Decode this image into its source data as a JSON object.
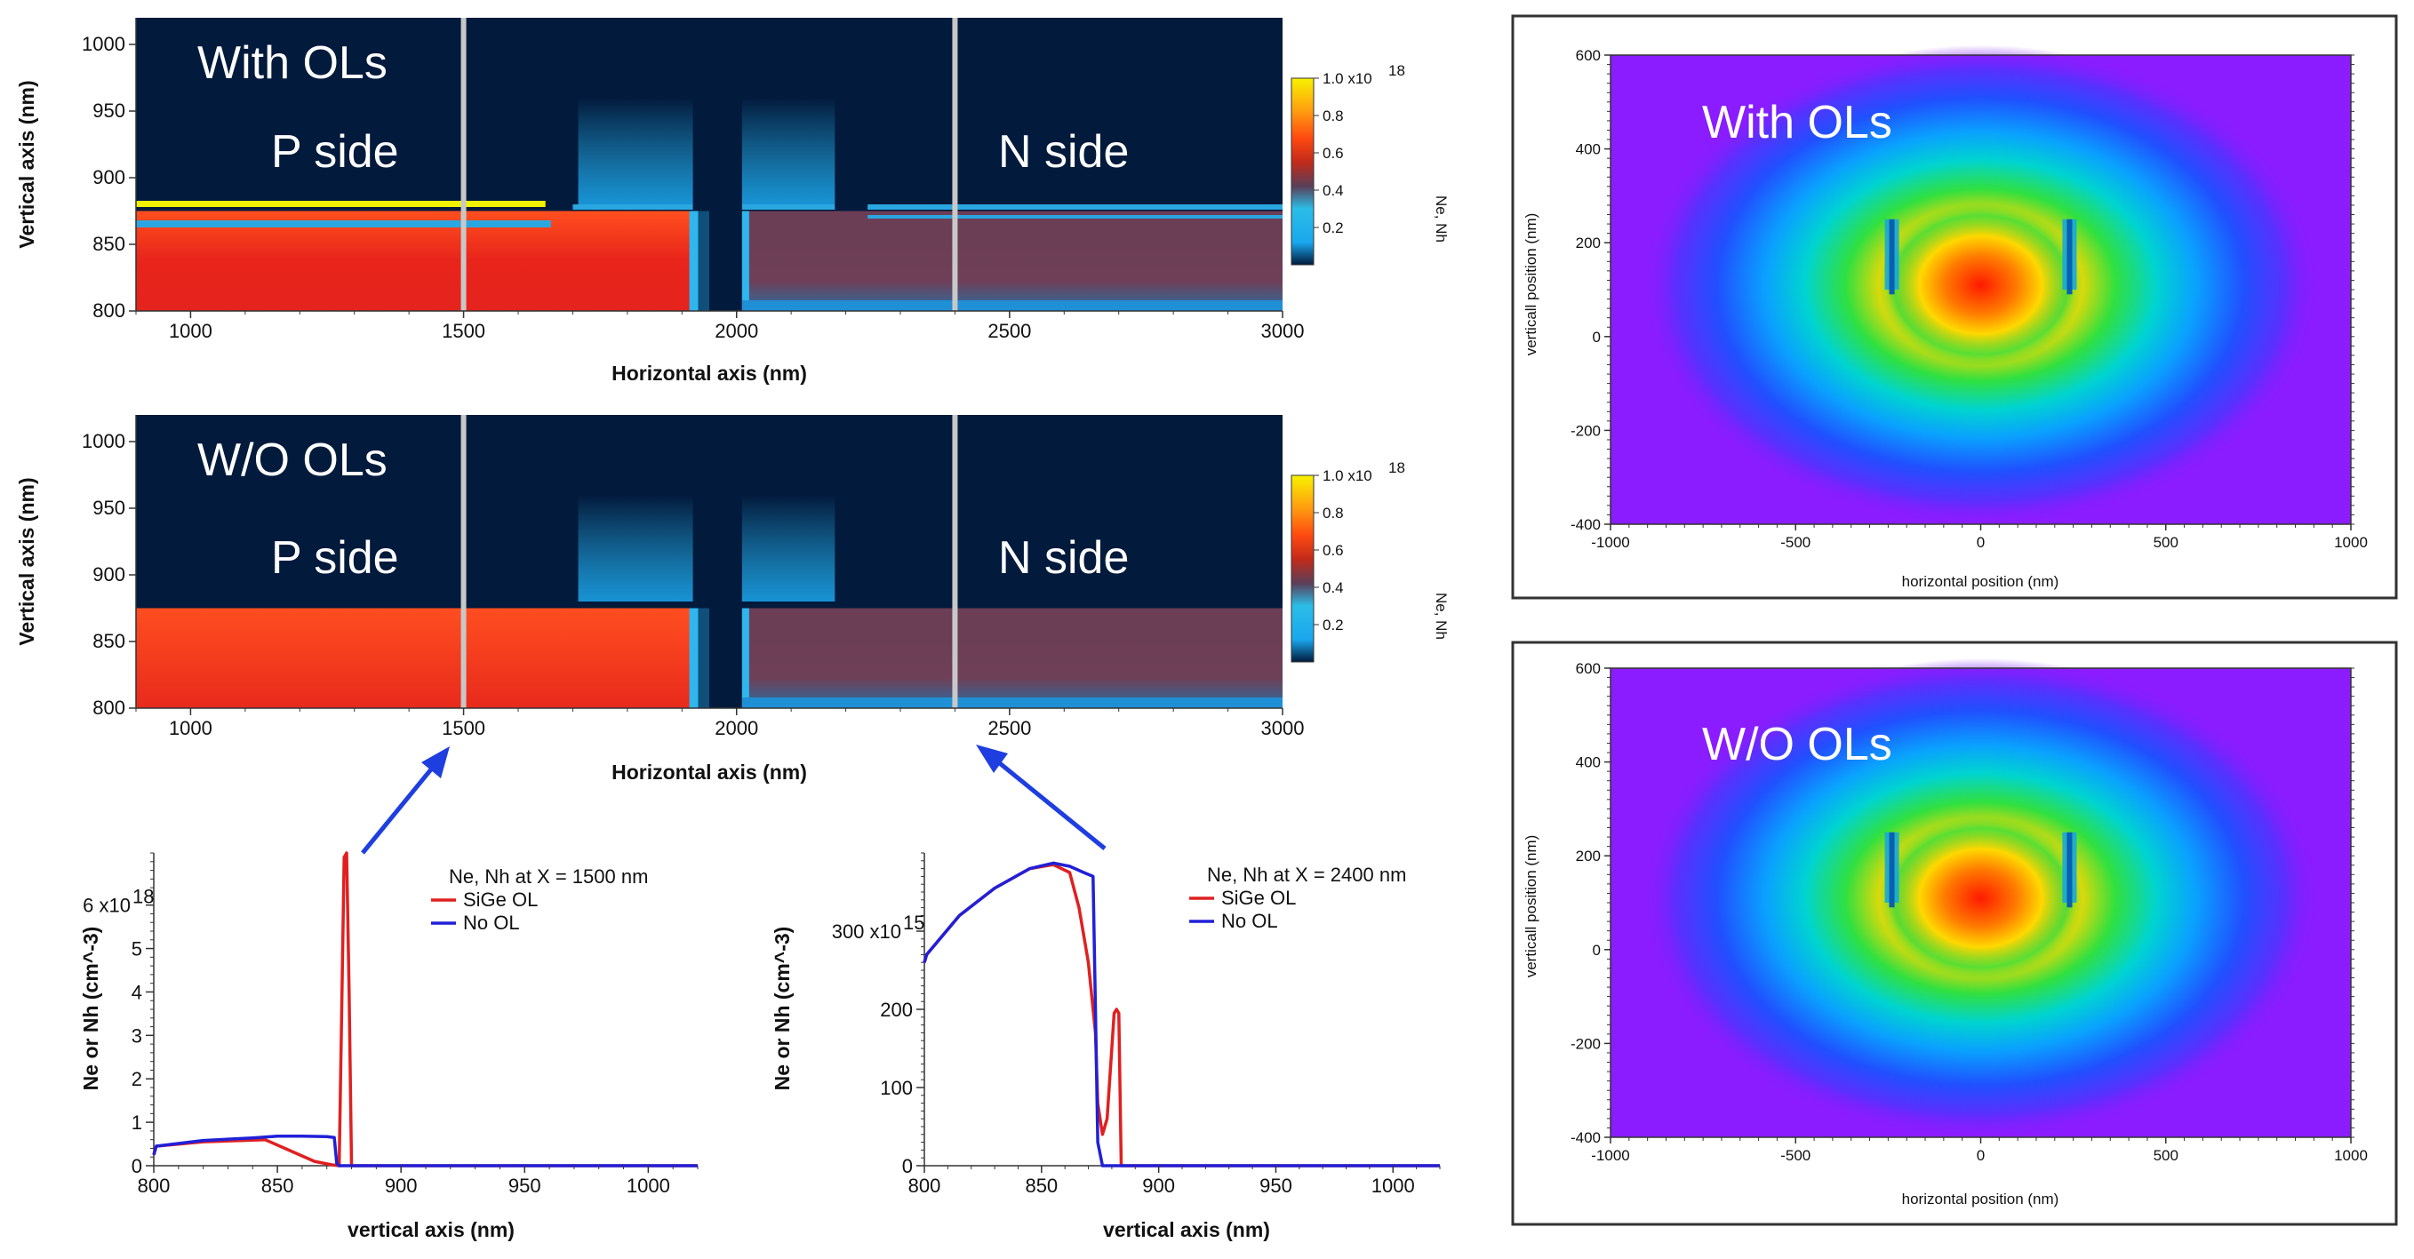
{
  "colors": {
    "dark_bg": "#021a3c",
    "sige_red": "#e02020",
    "no_ol_blue": "#2020d8",
    "arrow_blue": "#1f3ee0",
    "frame": "#333333",
    "mode_bg": "#8a1cff"
  },
  "chart_data": [
    {
      "id": "dens_with",
      "type": "heatmap",
      "xlabel": "Horizontal axis (nm)",
      "ylabel": "Vertical axis (nm)",
      "xlim": [
        900,
        3000
      ],
      "ylim": [
        800,
        1020
      ],
      "xticks": [
        "1000",
        "1500",
        "2000",
        "2500",
        "3000"
      ],
      "yticks": [
        "800",
        "850",
        "900",
        "950",
        "1000"
      ],
      "overlay_title": "With OLs",
      "p_label": "P side",
      "n_label": "N side",
      "cut_lines_x": [
        1500,
        2400
      ],
      "colorbar": {
        "label": "Ne, Nh",
        "ticks": [
          "0.2",
          "0.4",
          "0.6",
          "0.8"
        ],
        "max_label": "1.0 x10",
        "max_exp": "18",
        "tick_values": [
          0.2,
          0.4,
          0.6,
          0.8,
          1.0
        ]
      },
      "regions": {
        "p_end": 1920,
        "gap_start": 1950,
        "gap_end": 2010,
        "layer_top": 875,
        "ol_x": [
          900,
          1650
        ],
        "ol_y": 880
      }
    },
    {
      "id": "dens_wo",
      "type": "heatmap",
      "xlabel": "Horizontal axis (nm)",
      "ylabel": "Vertical axis (nm)",
      "xlim": [
        900,
        3000
      ],
      "ylim": [
        800,
        1020
      ],
      "xticks": [
        "1000",
        "1500",
        "2000",
        "2500",
        "3000"
      ],
      "yticks": [
        "800",
        "850",
        "900",
        "950",
        "1000"
      ],
      "overlay_title": "W/O OLs",
      "p_label": "P side",
      "n_label": "N side",
      "cut_lines_x": [
        1500,
        2400
      ],
      "colorbar": {
        "label": "Ne, Nh",
        "ticks": [
          "0.2",
          "0.4",
          "0.6",
          "0.8"
        ],
        "max_label": "1.0 x10",
        "max_exp": "18",
        "tick_values": [
          0.2,
          0.4,
          0.6,
          0.8,
          1.0
        ]
      },
      "regions": {
        "p_end": 1920,
        "gap_start": 1950,
        "gap_end": 2010,
        "layer_top": 875
      }
    },
    {
      "id": "line_1500",
      "type": "line",
      "title": "Ne, Nh at X = 1500 nm",
      "xlabel": "vertical axis (nm)",
      "ylabel": "Ne or Nh (cm^-3)",
      "xlim": [
        800,
        1020
      ],
      "ylim": [
        0,
        7.2
      ],
      "y_unit": "x10^18",
      "xticks": [
        "800",
        "850",
        "900",
        "950",
        "1000"
      ],
      "yticks": [
        "0",
        "1",
        "2",
        "3",
        "4",
        "5"
      ],
      "ytop_label": "6 x10",
      "ytop_exp": "18",
      "series": [
        {
          "name": "SiGe OL",
          "color": "#e02020",
          "x": [
            800,
            801,
            820,
            845,
            855,
            865,
            872,
            875,
            876,
            877,
            878,
            879,
            880,
            1020
          ],
          "y": [
            0.25,
            0.45,
            0.55,
            0.6,
            0.35,
            0.1,
            0.02,
            0.0,
            3.5,
            7.1,
            7.2,
            4.0,
            0.0,
            0.0
          ]
        },
        {
          "name": "No OL",
          "color": "#2020d8",
          "x": [
            800,
            801,
            820,
            840,
            850,
            860,
            870,
            873,
            874,
            875,
            1020
          ],
          "y": [
            0.25,
            0.45,
            0.58,
            0.64,
            0.68,
            0.68,
            0.67,
            0.65,
            0.05,
            0.0,
            0.0
          ]
        }
      ]
    },
    {
      "id": "line_2400",
      "type": "line",
      "title": "Ne, Nh at X = 2400 nm",
      "xlabel": "vertical axis (nm)",
      "ylabel": "Ne or Nh (cm^-3)",
      "xlim": [
        800,
        1020
      ],
      "ylim": [
        0,
        400
      ],
      "y_unit": "x10^15",
      "xticks": [
        "800",
        "850",
        "900",
        "950",
        "1000"
      ],
      "yticks": [
        "0",
        "100",
        "200"
      ],
      "ytop_label": "300 x10",
      "ytop_exp": "15",
      "series": [
        {
          "name": "SiGe OL",
          "color": "#e02020",
          "x": [
            800,
            801,
            815,
            830,
            845,
            855,
            862,
            866,
            870,
            873,
            874,
            876,
            878,
            880,
            881,
            882,
            883,
            884,
            1020
          ],
          "y": [
            260,
            270,
            320,
            355,
            380,
            385,
            375,
            330,
            260,
            170,
            80,
            40,
            60,
            150,
            195,
            200,
            195,
            0,
            0
          ]
        },
        {
          "name": "No OL",
          "color": "#2020d8",
          "x": [
            800,
            801,
            815,
            830,
            845,
            855,
            862,
            868,
            872,
            873,
            874,
            876,
            1020
          ],
          "y": [
            260,
            270,
            320,
            355,
            380,
            387,
            383,
            375,
            370,
            200,
            30,
            0,
            0
          ]
        }
      ]
    },
    {
      "id": "mode_with",
      "type": "heatmap",
      "xlabel": "horizontal position (nm)",
      "ylabel": "verticall position (nm)",
      "xlim": [
        -1000,
        1000
      ],
      "ylim": [
        -400,
        600
      ],
      "xticks": [
        "-1000",
        "-500",
        "0",
        "500",
        "1000"
      ],
      "yticks": [
        "-400",
        "-200",
        "0",
        "200",
        "400",
        "600"
      ],
      "overlay_title": "With OLs",
      "mode_center": [
        0,
        110
      ]
    },
    {
      "id": "mode_wo",
      "type": "heatmap",
      "xlabel": "horizontal position (nm)",
      "ylabel": "verticall position (nm)",
      "xlim": [
        -1000,
        1000
      ],
      "ylim": [
        -400,
        600
      ],
      "xticks": [
        "-1000",
        "-500",
        "0",
        "500",
        "1000"
      ],
      "yticks": [
        "-400",
        "-200",
        "0",
        "200",
        "400",
        "600"
      ],
      "overlay_title": "W/O OLs",
      "mode_center": [
        0,
        110
      ]
    }
  ]
}
